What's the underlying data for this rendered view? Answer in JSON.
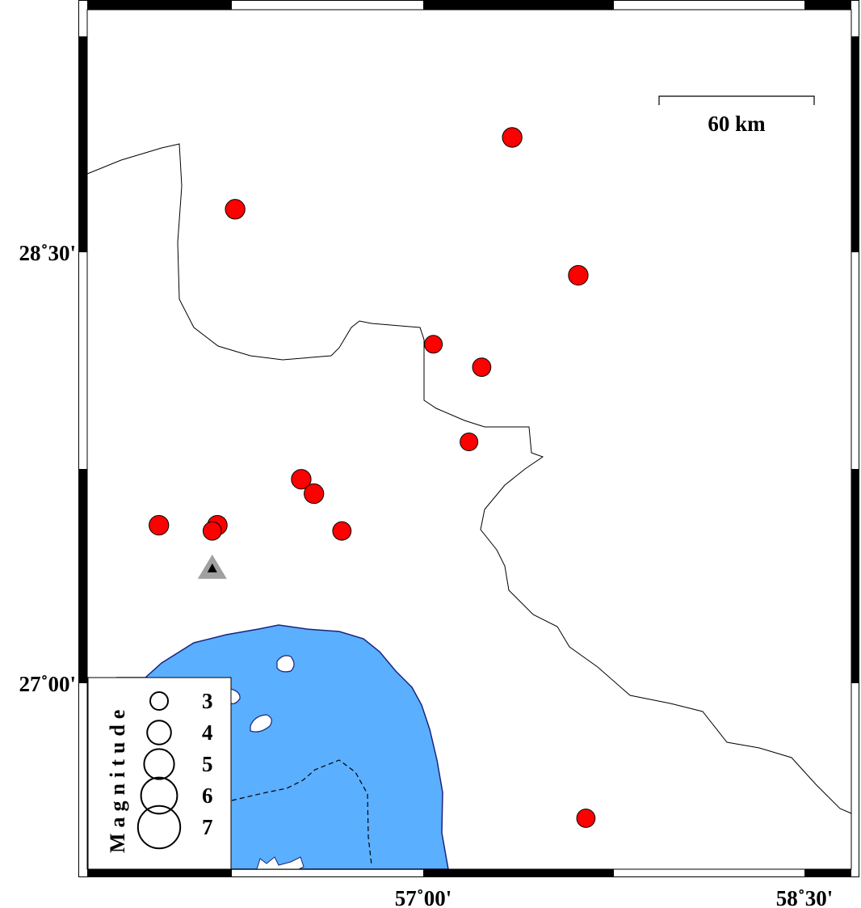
{
  "map": {
    "lon_range": [
      55.7,
      58.6
    ],
    "lat_range": [
      26.35,
      29.35
    ],
    "lon_ticks": [
      {
        "value": 57.0,
        "label": "57˚00'"
      },
      {
        "value": 58.5,
        "label": "58˚30'"
      }
    ],
    "lat_ticks": [
      {
        "value": 28.5,
        "label": "28˚30'"
      },
      {
        "value": 27.0,
        "label": "27˚00'"
      }
    ],
    "scale_bar": {
      "label": "60 km"
    },
    "colors": {
      "sea": "#5aafff",
      "coast": "#1a237e",
      "event": "#ff0000",
      "station": "#000000",
      "station_halo": "#a0a0a0"
    }
  },
  "events": [
    {
      "lon": 57.35,
      "lat": 28.9,
      "mag": 3.3
    },
    {
      "lon": 56.26,
      "lat": 28.65,
      "mag": 3.3
    },
    {
      "lon": 57.61,
      "lat": 28.42,
      "mag": 3.3
    },
    {
      "lon": 57.04,
      "lat": 28.18,
      "mag": 3.0
    },
    {
      "lon": 57.23,
      "lat": 28.1,
      "mag": 3.1
    },
    {
      "lon": 57.18,
      "lat": 27.84,
      "mag": 3.0
    },
    {
      "lon": 56.52,
      "lat": 27.71,
      "mag": 3.3
    },
    {
      "lon": 56.57,
      "lat": 27.66,
      "mag": 3.3
    },
    {
      "lon": 56.68,
      "lat": 27.53,
      "mag": 3.1
    },
    {
      "lon": 55.96,
      "lat": 27.55,
      "mag": 3.3
    },
    {
      "lon": 56.19,
      "lat": 27.55,
      "mag": 3.3
    },
    {
      "lon": 56.17,
      "lat": 27.53,
      "mag": 3.1
    },
    {
      "lon": 57.64,
      "lat": 26.53,
      "mag": 3.1
    }
  ],
  "station": {
    "lon": 56.17,
    "lat": 27.4,
    "symbol": "triangle"
  },
  "legend": {
    "title": "Magnitude",
    "items": [
      {
        "mag": 3,
        "label": "3"
      },
      {
        "mag": 4,
        "label": "4"
      },
      {
        "mag": 5,
        "label": "5"
      },
      {
        "mag": 6,
        "label": "6"
      },
      {
        "mag": 7,
        "label": "7"
      }
    ]
  }
}
